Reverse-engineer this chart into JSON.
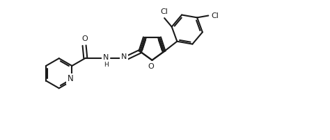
{
  "bg": "#ffffff",
  "lc": "#1a1a1a",
  "lw": 1.5,
  "fs": 8.0,
  "figsize": [
    4.74,
    2.02
  ],
  "dpi": 100,
  "xlim": [
    -0.5,
    10.5
  ],
  "ylim": [
    0.0,
    4.3
  ]
}
